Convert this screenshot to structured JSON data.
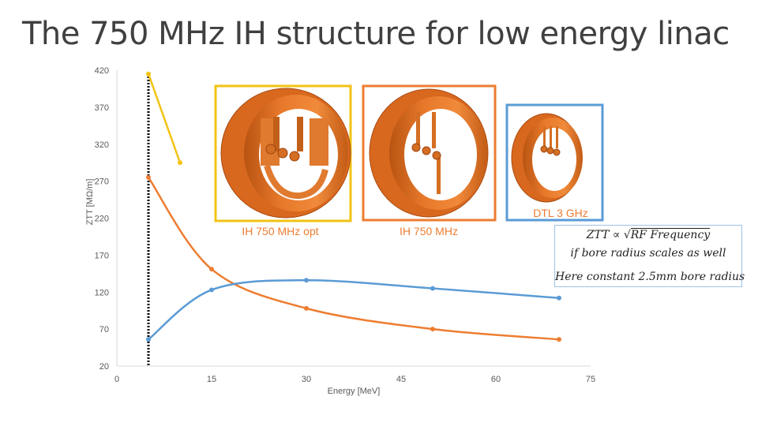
{
  "slide": {
    "title": "The 750 MHz IH structure for low energy linac"
  },
  "chart_data": {
    "type": "line",
    "xlabel": "Energy [MeV]",
    "ylabel": "ZTT [MΩ/m]",
    "xlim": [
      0,
      75
    ],
    "ylim": [
      20,
      420
    ],
    "x_ticks": [
      0,
      15,
      30,
      45,
      60,
      75
    ],
    "y_ticks": [
      20,
      70,
      120,
      170,
      220,
      270,
      320,
      370,
      420
    ],
    "vertical_marker_x": 5,
    "series": [
      {
        "name": "DTL 3 GHz",
        "color": "#f2c314",
        "x": [
          5,
          10
        ],
        "y": [
          415,
          295
        ]
      },
      {
        "name": "IH 750 MHz opt",
        "color": "#ed7d31",
        "x": [
          5,
          15,
          30,
          50,
          70
        ],
        "y": [
          275,
          151,
          98,
          70,
          56
        ]
      },
      {
        "name": "IH 750 MHz",
        "color": "#5b9bd5",
        "x": [
          5,
          15,
          30,
          50,
          70
        ],
        "y": [
          56,
          123,
          136,
          125,
          112
        ]
      }
    ]
  },
  "panels": [
    {
      "label": "IH 750 MHz opt",
      "border_color": "#f2c314",
      "label_color": "#ed7d31"
    },
    {
      "label": "IH 750 MHz",
      "border_color": "#ed7d31",
      "label_color": "#ed7d31"
    },
    {
      "label": "DTL 3 GHz",
      "border_color": "#5b9bd5",
      "label_color": "#ed7d31"
    }
  ],
  "formula": {
    "line1_prefix": "ZTT",
    "proportional": "∝",
    "line1_radicand": "RF Frequency",
    "line2": "if bore radius scales as well",
    "line3": "Here constant 2.5mm bore radius"
  }
}
